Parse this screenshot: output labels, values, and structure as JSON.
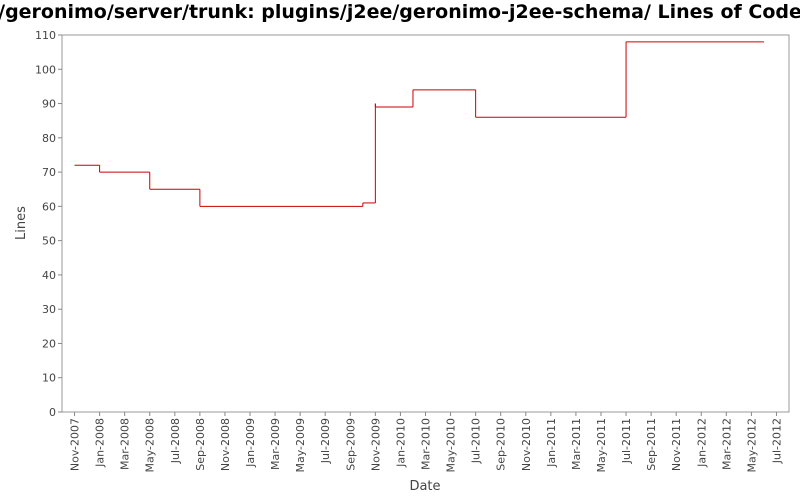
{
  "chart_data": {
    "type": "step",
    "title": "/geronimo/server/trunk: plugins/j2ee/geronimo-j2ee-schema/ Lines of Code",
    "x_label": "Date",
    "y_label": "Lines",
    "x": [
      "2007-11",
      "2008-01",
      "2008-05",
      "2008-09",
      "2009-10",
      "2009-11",
      "2009-11",
      "2010-02",
      "2010-07",
      "2011-07",
      "2012-06"
    ],
    "series": [
      {
        "name": "Lines",
        "color": "#cc0000",
        "values": [
          72,
          70,
          65,
          60,
          61,
          90,
          89,
          94,
          86,
          108,
          108
        ]
      }
    ],
    "xlim": [
      "2007-10",
      "2012-08"
    ],
    "xticks": [
      {
        "value": "2007-11",
        "label": "Nov-2007"
      },
      {
        "value": "2008-01",
        "label": "Jan-2008"
      },
      {
        "value": "2008-03",
        "label": "Mar-2008"
      },
      {
        "value": "2008-05",
        "label": "May-2008"
      },
      {
        "value": "2008-07",
        "label": "Jul-2008"
      },
      {
        "value": "2008-09",
        "label": "Sep-2008"
      },
      {
        "value": "2008-11",
        "label": "Nov-2008"
      },
      {
        "value": "2009-01",
        "label": "Jan-2009"
      },
      {
        "value": "2009-03",
        "label": "Mar-2009"
      },
      {
        "value": "2009-05",
        "label": "May-2009"
      },
      {
        "value": "2009-07",
        "label": "Jul-2009"
      },
      {
        "value": "2009-09",
        "label": "Sep-2009"
      },
      {
        "value": "2009-11",
        "label": "Nov-2009"
      },
      {
        "value": "2010-01",
        "label": "Jan-2010"
      },
      {
        "value": "2010-03",
        "label": "Mar-2010"
      },
      {
        "value": "2010-05",
        "label": "May-2010"
      },
      {
        "value": "2010-07",
        "label": "Jul-2010"
      },
      {
        "value": "2010-09",
        "label": "Sep-2010"
      },
      {
        "value": "2010-11",
        "label": "Nov-2010"
      },
      {
        "value": "2011-01",
        "label": "Jan-2011"
      },
      {
        "value": "2011-03",
        "label": "Mar-2011"
      },
      {
        "value": "2011-05",
        "label": "May-2011"
      },
      {
        "value": "2011-07",
        "label": "Jul-2011"
      },
      {
        "value": "2011-09",
        "label": "Sep-2011"
      },
      {
        "value": "2011-11",
        "label": "Nov-2011"
      },
      {
        "value": "2012-01",
        "label": "Jan-2012"
      },
      {
        "value": "2012-03",
        "label": "Mar-2012"
      },
      {
        "value": "2012-05",
        "label": "May-2012"
      },
      {
        "value": "2012-07",
        "label": "Jul-2012"
      }
    ],
    "ylim": [
      0,
      110
    ],
    "yticks": [
      0,
      10,
      20,
      30,
      40,
      50,
      60,
      70,
      80,
      90,
      100,
      110
    ],
    "grid": false
  }
}
